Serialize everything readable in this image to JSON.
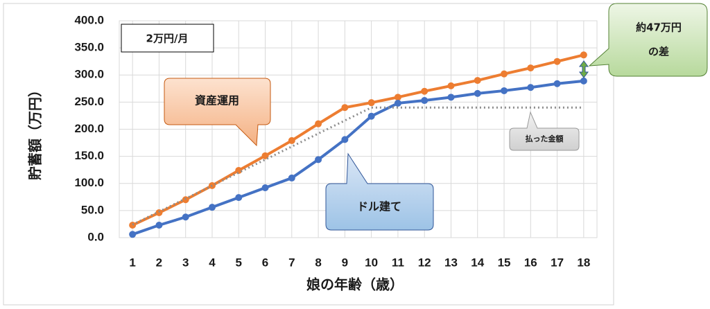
{
  "chart_data": {
    "type": "line",
    "x_label": "娘の年齢（歳）",
    "y_label": "貯蓄額（万円）",
    "x": [
      1,
      2,
      3,
      4,
      5,
      6,
      7,
      8,
      9,
      10,
      11,
      12,
      13,
      14,
      15,
      16,
      17,
      18
    ],
    "xlim": [
      0.5,
      18.5
    ],
    "xticks": [
      1,
      2,
      3,
      4,
      5,
      6,
      7,
      8,
      9,
      10,
      11,
      12,
      13,
      14,
      15,
      16,
      17,
      18
    ],
    "ylim": [
      0,
      400
    ],
    "yticks": [
      {
        "value": 0,
        "label": "0.0"
      },
      {
        "value": 50,
        "label": "50.0"
      },
      {
        "value": 100,
        "label": "100.0"
      },
      {
        "value": 150,
        "label": "150.0"
      },
      {
        "value": 200,
        "label": "200.0"
      },
      {
        "value": 250,
        "label": "250.0"
      },
      {
        "value": 300,
        "label": "300.0"
      },
      {
        "value": 350,
        "label": "350.0"
      },
      {
        "value": 400,
        "label": "400.0"
      }
    ],
    "grid": true,
    "series": [
      {
        "name": "資産運用",
        "color": "#ed7d31",
        "style": "solid",
        "values": [
          23,
          46,
          70,
          96,
          124,
          151,
          179,
          210,
          240,
          249,
          259,
          270,
          280,
          290,
          302,
          313,
          325,
          337
        ]
      },
      {
        "name": "ドル建て",
        "color": "#4472c4",
        "style": "solid",
        "values": [
          6,
          23,
          38,
          56,
          74,
          92,
          110,
          144,
          181,
          224,
          248,
          253,
          259,
          266,
          271,
          277,
          284,
          289
        ]
      },
      {
        "name": "払った金額",
        "color": "#8c8c8c",
        "style": "dotted",
        "values": [
          24,
          48,
          72,
          96,
          120,
          144,
          168,
          192,
          216,
          240,
          240,
          240,
          240,
          240,
          240,
          240,
          240,
          240
        ]
      }
    ],
    "annotations": {
      "monthly": "2万円/月",
      "difference": [
        "約47万円",
        "の差"
      ]
    }
  }
}
